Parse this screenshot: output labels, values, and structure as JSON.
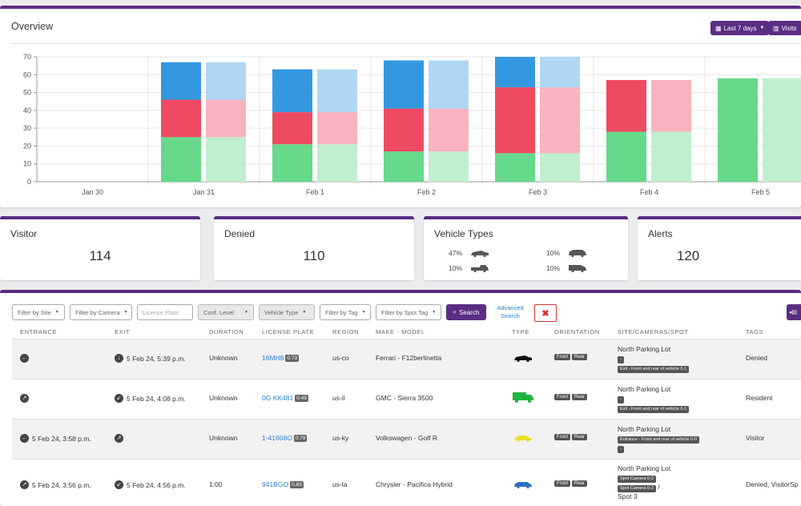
{
  "overview": {
    "title": "Overview",
    "date_range_label": "Last 7 days",
    "metric_label": "Visits"
  },
  "chart_data": {
    "type": "bar",
    "stacked": true,
    "categories": [
      "Jan 30",
      "Jan 31",
      "Feb 1",
      "Feb 2",
      "Feb 3",
      "Feb 4",
      "Feb 5"
    ],
    "ylim": [
      0,
      70
    ],
    "yticks": [
      0,
      10,
      20,
      30,
      40,
      50,
      60,
      70
    ],
    "grid": true,
    "colors": {
      "green": "#66d98a",
      "red": "#ee4a62",
      "blue": "#3498e0",
      "green_light": "#c0efd0",
      "red_light": "#f8b3bf",
      "blue_light": "#b0d7f4"
    },
    "groups": [
      {
        "bar1": {
          "green": 0,
          "red": 0,
          "blue": 0
        },
        "bar2": {
          "green": 0,
          "red": 0,
          "blue": 0
        }
      },
      {
        "bar1": {
          "green": 25,
          "red": 21,
          "blue": 21
        },
        "bar2": {
          "green": 25,
          "red": 21,
          "blue": 21
        }
      },
      {
        "bar1": {
          "green": 21,
          "red": 18,
          "blue": 24
        },
        "bar2": {
          "green": 21,
          "red": 18,
          "blue": 24
        }
      },
      {
        "bar1": {
          "green": 17,
          "red": 24,
          "blue": 27
        },
        "bar2": {
          "green": 17,
          "red": 24,
          "blue": 27
        }
      },
      {
        "bar1": {
          "green": 16,
          "red": 37,
          "blue": 17
        },
        "bar2": {
          "green": 16,
          "red": 37,
          "blue": 17
        }
      },
      {
        "bar1": {
          "green": 28,
          "red": 29,
          "blue": 0
        },
        "bar2": {
          "green": 28,
          "red": 29,
          "blue": 0
        }
      },
      {
        "bar1": {
          "green": 58,
          "red": 0,
          "blue": 0
        },
        "bar2": {
          "green": 58,
          "red": 0,
          "blue": 0
        }
      }
    ]
  },
  "stats": {
    "visitor": {
      "label": "Visitor",
      "value": "114"
    },
    "denied": {
      "label": "Denied",
      "value": "110"
    },
    "vehicle_types": {
      "label": "Vehicle Types",
      "items": [
        {
          "pct": "47%",
          "icon": "sedan-icon"
        },
        {
          "pct": "10%",
          "icon": "pickup-truck-icon"
        },
        {
          "pct": "10%",
          "icon": "suv-icon"
        },
        {
          "pct": "10%",
          "icon": "van-icon"
        }
      ]
    },
    "alerts": {
      "label": "Alerts",
      "value": "120"
    }
  },
  "filters": {
    "site": "Filter by Site",
    "camera": "Filter by Camera",
    "plate_placeholder": "License Plate",
    "conf": "Conf. Level",
    "vehicle_type": "Vehicle Type",
    "tag": "Filter by Tag",
    "spot_tag": "Filter by Spot Tag",
    "search": "Search",
    "advanced": "Advanced Search",
    "clear": "✖"
  },
  "table": {
    "headers": [
      "ENTRANCE",
      "EXIT",
      "DURATION",
      "LICENSE PLATE",
      "REGION",
      "MAKE - MODEL",
      "TYPE",
      "ORIENTATION",
      "SITE/CAMERAS/SPOT",
      "TAGS"
    ],
    "rows": [
      {
        "entrance": "",
        "exit": "5 Feb 24, 5:39 p.m.",
        "duration": "Unknown",
        "plate": "16MH8",
        "conf": "0.73",
        "region": "us-co",
        "make": "Ferrari - F12berlinetta",
        "type_color": "#111111",
        "orient": [
          "Front",
          "Rear"
        ],
        "site": "North Parking Lot",
        "site_tags": [
          "-",
          "Exit - Front and rear of vehicle 0-1"
        ],
        "spot": "",
        "tags": "Denied"
      },
      {
        "entrance": "",
        "exit": "5 Feb 24, 4:08 p.m.",
        "duration": "Unknown",
        "plate": "0G KK481",
        "conf": "0.49",
        "region": "us-il",
        "make": "GMC - Sierra 3500",
        "type_color": "#1fb340",
        "orient": [
          "Front",
          "Rear"
        ],
        "site": "North Parking Lot",
        "site_tags": [
          "-",
          "Exit - Front and rear of vehicle 0-1"
        ],
        "spot": "",
        "tags": "Resident"
      },
      {
        "entrance": "5 Feb 24, 3:58 p.m.",
        "exit": "",
        "duration": "Unknown",
        "plate": "1-41608O",
        "conf": "0.79",
        "region": "us-ky",
        "make": "Volkswagen - Golf R",
        "type_color": "#e8e02a",
        "orient": [
          "Front",
          "Rear"
        ],
        "site": "North Parking Lot",
        "site_tags": [
          "Entrance - Front and rear of vehicle 0-0",
          "-"
        ],
        "spot": "",
        "tags": "Visitor"
      },
      {
        "entrance": "5 Feb 24, 3:56 p.m.",
        "exit": "5 Feb 24, 4:56 p.m.",
        "duration": "1:00",
        "plate": "941BGO",
        "conf": "0.83",
        "region": "us-la",
        "make": "Chrysler - Pacifica Hybrid",
        "type_color": "#2f6fc8",
        "orient": [
          "Front",
          "Rear"
        ],
        "site": "North Parking Lot",
        "site_tags": [
          "Spot Camera 0-2",
          "Spot Camera 0-2"
        ],
        "spot": "Spot 3",
        "tags": "Denied, VisitorSp"
      }
    ]
  }
}
